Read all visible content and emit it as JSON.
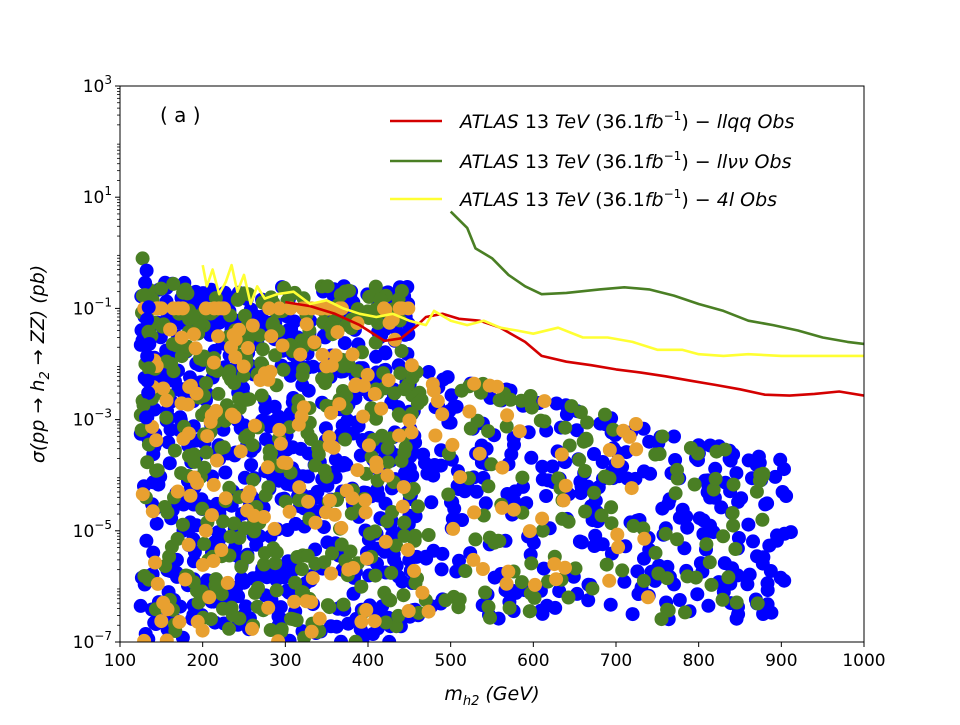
{
  "chart_data": {
    "type": "scatter",
    "panel_label": "( a )",
    "xlabel": "m_h2 (GeV)",
    "xlabel_main": "m",
    "xlabel_sub": "h2",
    "xlabel_unit": "(GeV)",
    "ylabel": "σ(pp → h2 → ZZ) (pb)",
    "ylabel_pre": "σ(pp → h",
    "ylabel_sub": "2",
    "ylabel_post": " → ZZ)  (pb)",
    "xlim": [
      100,
      1000
    ],
    "ylim_log10": [
      -7,
      3
    ],
    "yscale": "log",
    "x_ticks": [
      100,
      200,
      300,
      400,
      500,
      600,
      700,
      800,
      900,
      1000
    ],
    "x_tick_labels": [
      "100",
      "200",
      "300",
      "400",
      "500",
      "600",
      "700",
      "800",
      "900",
      "1000"
    ],
    "y_tick_exponents": [
      -7,
      -5,
      -3,
      -1,
      1,
      3
    ],
    "y_tick_label_base": "10",
    "y_tick_label_exponents": [
      "−7",
      "−5",
      "−3",
      "−1",
      "1",
      "3"
    ],
    "legend": {
      "placement": "top-right",
      "entries": [
        {
          "key": "llqq",
          "prefix": "ATLAS",
          "mid": " 13 ",
          "tev": "TeV",
          "lumi_open": " (36.1",
          "fb": "fb",
          "sup": "−1",
          "lumi_close": ") − ",
          "channel": "llqq Obs",
          "color": "#d40000"
        },
        {
          "key": "llvv",
          "prefix": "ATLAS",
          "mid": " 13 ",
          "tev": "TeV",
          "lumi_open": " (36.1",
          "fb": "fb",
          "sup": "−1",
          "lumi_close": ") − ",
          "channel": "llνν Obs",
          "color": "#4a7f24"
        },
        {
          "key": "4l",
          "prefix": "ATLAS",
          "mid": " 13 ",
          "tev": "TeV",
          "lumi_open": " (36.1",
          "fb": "fb",
          "sup": "−1",
          "lumi_close": ") − ",
          "channel": "4l Obs",
          "color": "#ffff33"
        }
      ]
    },
    "lines": [
      {
        "name": "ATLAS 13 TeV (36.1fb−1) − llqq Obs",
        "color": "#d40000",
        "points": [
          [
            300,
            0.13
          ],
          [
            330,
            0.11
          ],
          [
            360,
            0.08
          ],
          [
            390,
            0.05
          ],
          [
            420,
            0.026
          ],
          [
            440,
            0.029
          ],
          [
            460,
            0.05
          ],
          [
            470,
            0.07
          ],
          [
            490,
            0.08
          ],
          [
            510,
            0.065
          ],
          [
            535,
            0.06
          ],
          [
            560,
            0.045
          ],
          [
            590,
            0.025
          ],
          [
            610,
            0.014
          ],
          [
            640,
            0.011
          ],
          [
            670,
            0.0095
          ],
          [
            700,
            0.008
          ],
          [
            730,
            0.007
          ],
          [
            760,
            0.006
          ],
          [
            790,
            0.005
          ],
          [
            820,
            0.0042
          ],
          [
            850,
            0.0035
          ],
          [
            880,
            0.0028
          ],
          [
            910,
            0.0027
          ],
          [
            940,
            0.0029
          ],
          [
            970,
            0.0032
          ],
          [
            1000,
            0.0027
          ]
        ]
      },
      {
        "name": "ATLAS 13 TeV (36.1fb−1) − llνν Obs",
        "color": "#4a7f24",
        "points": [
          [
            500,
            5.5
          ],
          [
            520,
            2.8
          ],
          [
            530,
            1.2
          ],
          [
            550,
            0.8
          ],
          [
            570,
            0.4
          ],
          [
            590,
            0.25
          ],
          [
            610,
            0.18
          ],
          [
            640,
            0.19
          ],
          [
            680,
            0.22
          ],
          [
            710,
            0.24
          ],
          [
            740,
            0.22
          ],
          [
            770,
            0.17
          ],
          [
            800,
            0.12
          ],
          [
            830,
            0.09
          ],
          [
            860,
            0.06
          ],
          [
            890,
            0.05
          ],
          [
            920,
            0.04
          ],
          [
            950,
            0.03
          ],
          [
            980,
            0.025
          ],
          [
            1000,
            0.023
          ]
        ]
      },
      {
        "name": "ATLAS 13 TeV (36.1fb−1) − 4l Obs",
        "color": "#ffff33",
        "points": [
          [
            200,
            0.6
          ],
          [
            205,
            0.25
          ],
          [
            212,
            0.5
          ],
          [
            220,
            0.18
          ],
          [
            228,
            0.3
          ],
          [
            235,
            0.6
          ],
          [
            242,
            0.2
          ],
          [
            250,
            0.4
          ],
          [
            258,
            0.12
          ],
          [
            266,
            0.25
          ],
          [
            275,
            0.15
          ],
          [
            290,
            0.18
          ],
          [
            310,
            0.2
          ],
          [
            330,
            0.12
          ],
          [
            350,
            0.14
          ],
          [
            370,
            0.1
          ],
          [
            390,
            0.08
          ],
          [
            410,
            0.07
          ],
          [
            430,
            0.08
          ],
          [
            450,
            0.06
          ],
          [
            470,
            0.05
          ],
          [
            480,
            0.09
          ],
          [
            500,
            0.06
          ],
          [
            520,
            0.05
          ],
          [
            540,
            0.06
          ],
          [
            560,
            0.045
          ],
          [
            580,
            0.04
          ],
          [
            600,
            0.035
          ],
          [
            630,
            0.045
          ],
          [
            660,
            0.03
          ],
          [
            690,
            0.03
          ],
          [
            720,
            0.025
          ],
          [
            750,
            0.018
          ],
          [
            780,
            0.018
          ],
          [
            800,
            0.015
          ],
          [
            830,
            0.014
          ],
          [
            860,
            0.015
          ],
          [
            900,
            0.014
          ],
          [
            950,
            0.014
          ],
          [
            1000,
            0.014
          ]
        ]
      }
    ],
    "scatter_series": [
      {
        "name": "blue points",
        "color": "#0000ff"
      },
      {
        "name": "green points",
        "color": "#4a7f24"
      },
      {
        "name": "orange points",
        "color": "#e8a030"
      }
    ]
  }
}
